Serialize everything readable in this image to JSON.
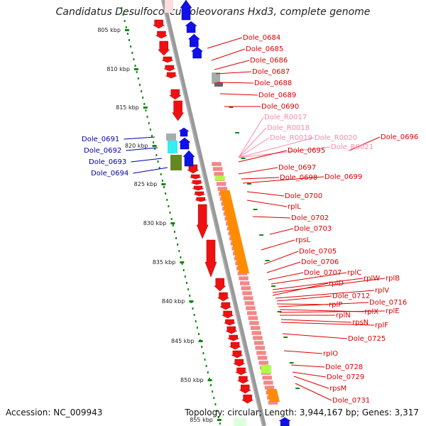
{
  "title": "Candidatus Desulfococcus oleovorans Hxd3, complete genome",
  "footer": {
    "accession": "Accession: NC_009943",
    "topology": "Topology: circular; Length: 3,944,167 bp; Genes: 3,317"
  },
  "colors": {
    "forward_cds": "#1010e8",
    "reverse_cds": "#ee1111",
    "rna": "#ff9999",
    "ribosomal": "#ff8c00",
    "label_forward": "#0000aa",
    "label_reverse": "#dd0000",
    "label_rna": "#ff88aa",
    "ticks": "#118811"
  },
  "ruler": {
    "labels": [
      "805 kbp",
      "810 kbp",
      "815 kbp",
      "820 kbp",
      "825 kbp",
      "830 kbp",
      "835 kbp",
      "840 kbp",
      "845 kbp",
      "850 kbp",
      "855 kbp"
    ],
    "start_kbp": 805,
    "step_kbp": 5
  },
  "forward_labels": [
    "Dole_0691",
    "Dole_0692",
    "Dole_0693",
    "Dole_0694"
  ],
  "reverse_labels": [
    "Dole_0684",
    "Dole_0685",
    "Dole_0686",
    "Dole_0687",
    "Dole_0688",
    "Dole_0689",
    "Dole_0690",
    "Dole_R0017",
    "Dole_R0018",
    "Dole_R0019",
    "Dole_R0020",
    "Dole_0696",
    "Dole_R0021",
    "Dole_0695",
    "Dole_0697",
    "Dole_0698",
    "Dole_0699",
    "Dole_0700",
    "rplL",
    "Dole_0702",
    "Dole_0703",
    "rpsL",
    "Dole_0705",
    "Dole_0706",
    "Dole_0707",
    "rplC",
    "rplW",
    "rplB",
    "rplD",
    "rplV",
    "Dole_0712",
    "rplP",
    "Dole_0716",
    "rplX",
    "rplE",
    "rplN",
    "rpsN",
    "rplF",
    "Dole_0725",
    "rplO",
    "Dole_0728",
    "Dole_0729",
    "rpsM",
    "Dole_0731"
  ]
}
